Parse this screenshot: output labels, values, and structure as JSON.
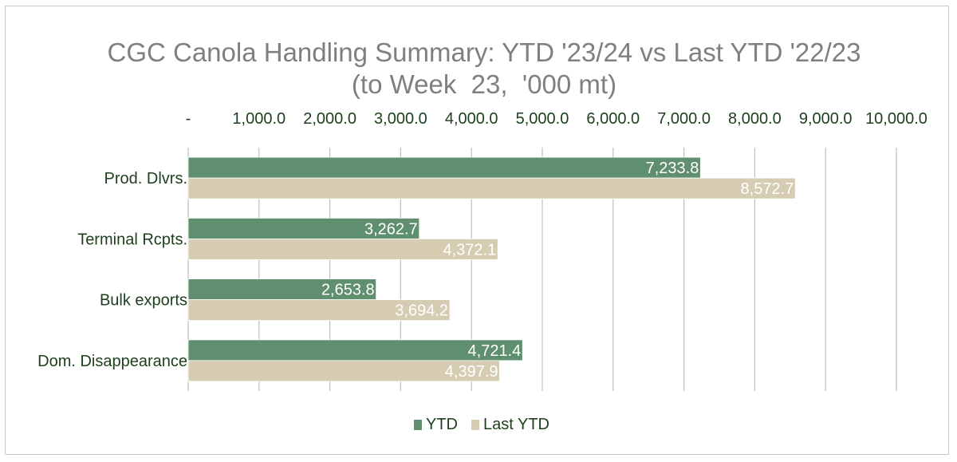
{
  "chart_data": {
    "type": "bar",
    "orientation": "horizontal",
    "title_line1": "CGC Canola Handling Summary: YTD '23/24 vs Last YTD '22/23",
    "title_line2": "(to Week  23,  '000 mt)",
    "categories": [
      "Prod. Dlvrs.",
      "Terminal Rcpts.",
      "Bulk exports",
      "Dom. Disappearance"
    ],
    "series": [
      {
        "name": "YTD",
        "values": [
          7233.8,
          3262.7,
          2653.8,
          4721.4
        ],
        "labels": [
          "7,233.8",
          "3,262.7",
          "2,653.8",
          "4,721.4"
        ],
        "color": "#5f8f6e"
      },
      {
        "name": "Last YTD",
        "values": [
          8572.7,
          4372.1,
          3694.2,
          4397.9
        ],
        "labels": [
          "8,572.7",
          "4,372.1",
          "3,694.2",
          "4,397.9"
        ],
        "color": "#d6ccb2"
      }
    ],
    "xlim": [
      0,
      10000
    ],
    "xticks": [
      0,
      1000,
      2000,
      3000,
      4000,
      5000,
      6000,
      7000,
      8000,
      9000,
      10000
    ],
    "xtick_labels": [
      "-",
      "1,000.0",
      "2,000.0",
      "3,000.0",
      "4,000.0",
      "5,000.0",
      "6,000.0",
      "7,000.0",
      "8,000.0",
      "9,000.0",
      "10,000.0"
    ],
    "grid": true,
    "legend": "bottom"
  }
}
